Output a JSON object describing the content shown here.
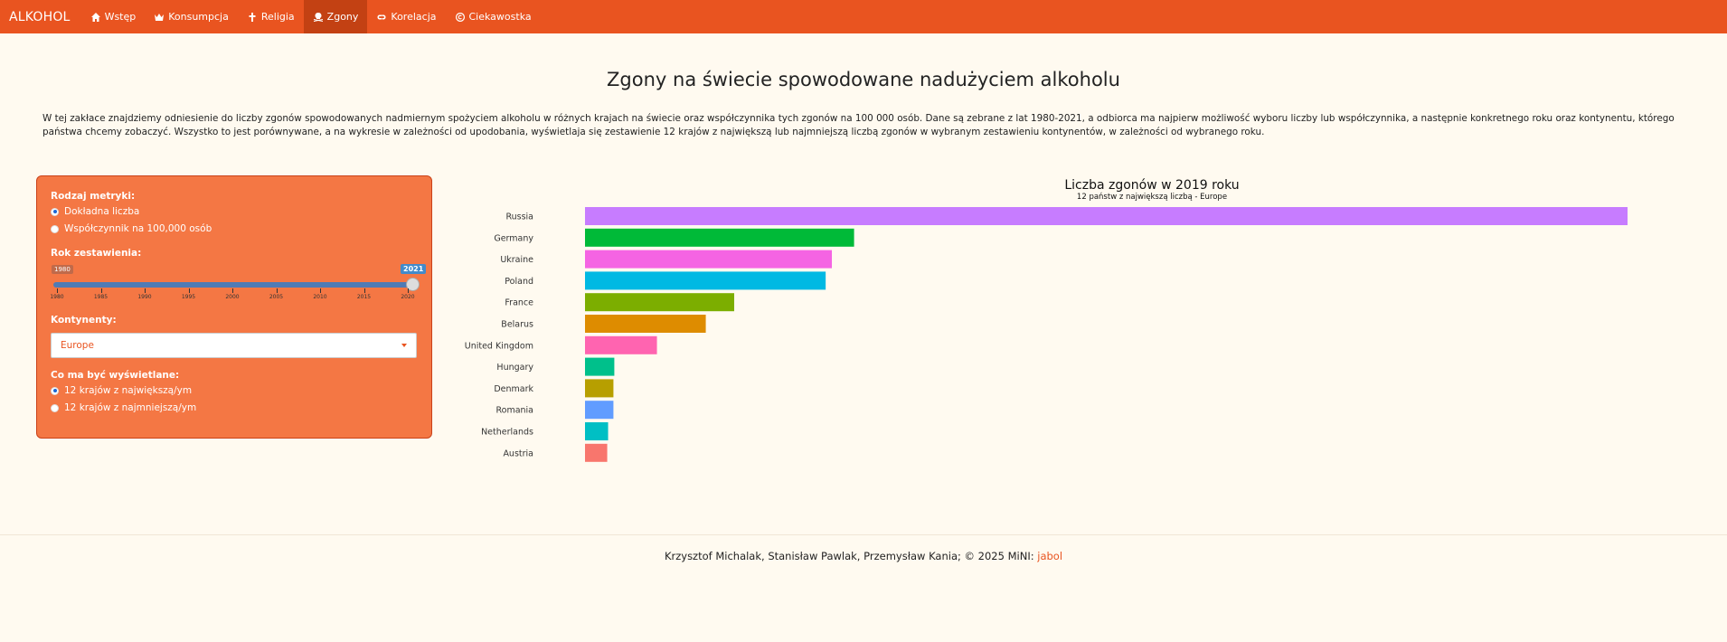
{
  "navbar": {
    "brand": "ALKOHOL",
    "items": [
      {
        "label": "Wstęp",
        "icon": "home-icon"
      },
      {
        "label": "Konsumpcja",
        "icon": "crown-icon"
      },
      {
        "label": "Religia",
        "icon": "cross-icon"
      },
      {
        "label": "Zgony",
        "icon": "skull-icon"
      },
      {
        "label": "Korelacja",
        "icon": "link-icon"
      },
      {
        "label": "Ciekawostka",
        "icon": "copyright-icon"
      }
    ],
    "active": "Zgony",
    "colors": {
      "bar": "#e95420",
      "active": "#c34113"
    }
  },
  "page": {
    "title": "Zgony na świecie spowodowane nadużyciem alkoholu",
    "description": "W tej zakłace znajdziemy odniesienie do liczby zgonów spowodowanych nadmiernym spożyciem alkoholu w różnych krajach na świecie oraz współczynnika tych zgonów na 100 000 osób. Dane są zebrane z lat 1980-2021, a odbiorca ma najpierw możliwość wyboru liczby lub współczynnika, a następnie konkretnego roku oraz kontynentu, którego państwa chcemy zobaczyć. Wszystko to jest porównywane, a na wykresie w zależności od upodobania, wyświetlaja się zestawienie 12 krajów z największą lub najmniejszą liczbą zgonów w wybranym zestawieniu kontynentów, w zależności od wybranego roku."
  },
  "sidebar": {
    "metric_label": "Rodzaj metryki:",
    "metric_options": [
      "Dokładna liczba",
      "Współczynnik na 100,000 osób"
    ],
    "metric_selected": 0,
    "year_label": "Rok zestawienia:",
    "slider": {
      "min": "1980",
      "max": "2021",
      "ticks": [
        "1980",
        "1985",
        "1990",
        "1995",
        "2000",
        "2005",
        "2010",
        "2015",
        "2020"
      ]
    },
    "continent_label": "Kontynenty:",
    "continent_value": "Europe",
    "display_label": "Co ma być wyświetlane:",
    "display_options": [
      "12 krajów z największą/ym",
      "12 krajów z najmniejszą/ym"
    ],
    "display_selected": 0
  },
  "chart_data": {
    "type": "bar",
    "orientation": "horizontal",
    "title": "Liczba zgonów w 2019 roku",
    "subtitle": "12 państw z największą liczbą - Europe",
    "categories": [
      "Russia",
      "Germany",
      "Ukraine",
      "Poland",
      "France",
      "Belarus",
      "United Kingdom",
      "Hungary",
      "Denmark",
      "Romania",
      "Netherlands",
      "Austria"
    ],
    "values": [
      58700,
      15150,
      13900,
      13550,
      8400,
      6800,
      4050,
      1650,
      1600,
      1600,
      1300,
      1250
    ],
    "colors": [
      "#c77cff",
      "#00ba38",
      "#f564e3",
      "#00b9e3",
      "#7cae00",
      "#de8c00",
      "#ff64b0",
      "#00c08b",
      "#b79f00",
      "#619cff",
      "#00bfc4",
      "#f8766d"
    ],
    "grid": false,
    "legend": "none"
  },
  "footer": {
    "text": "Krzysztof Michalak, Stanisław Pawlak, Przemysław Kania; © 2025 MiNI: ",
    "link": "jabol"
  }
}
